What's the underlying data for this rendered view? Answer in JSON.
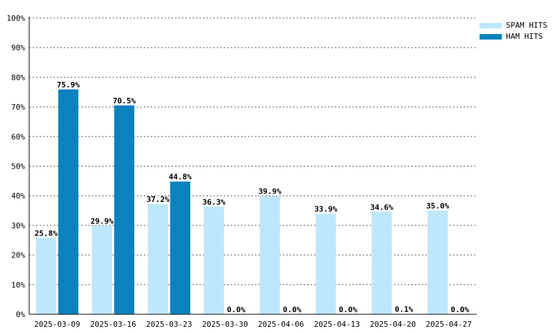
{
  "chart_data": {
    "type": "bar",
    "title": "",
    "xlabel": "",
    "ylabel": "",
    "ylim": [
      0,
      100
    ],
    "y_tick_labels": [
      "0%",
      "10%",
      "20%",
      "30%",
      "40%",
      "50%",
      "60%",
      "70%",
      "80%",
      "90%",
      "100%"
    ],
    "grid": true,
    "legend_position": "top-right",
    "categories": [
      "2025-03-09",
      "2025-03-16",
      "2025-03-23",
      "2025-03-30",
      "2025-04-06",
      "2025-04-13",
      "2025-04-20",
      "2025-04-27"
    ],
    "series": [
      {
        "name": "SPAM HITS",
        "color": "#bde8fb",
        "values": [
          25.8,
          29.9,
          37.2,
          36.3,
          39.9,
          33.9,
          34.6,
          35.0
        ],
        "labels": [
          "25.8%",
          "29.9%",
          "37.2%",
          "36.3%",
          "39.9%",
          "33.9%",
          "34.6%",
          "35.0%"
        ]
      },
      {
        "name": "HAM HITS",
        "color": "#0b82be",
        "values": [
          75.9,
          70.5,
          44.8,
          0.0,
          0.0,
          0.0,
          0.1,
          0.0
        ],
        "labels": [
          "75.9%",
          "70.5%",
          "44.8%",
          "0.0%",
          "0.0%",
          "0.0%",
          "0.1%",
          "0.0%"
        ]
      }
    ]
  }
}
